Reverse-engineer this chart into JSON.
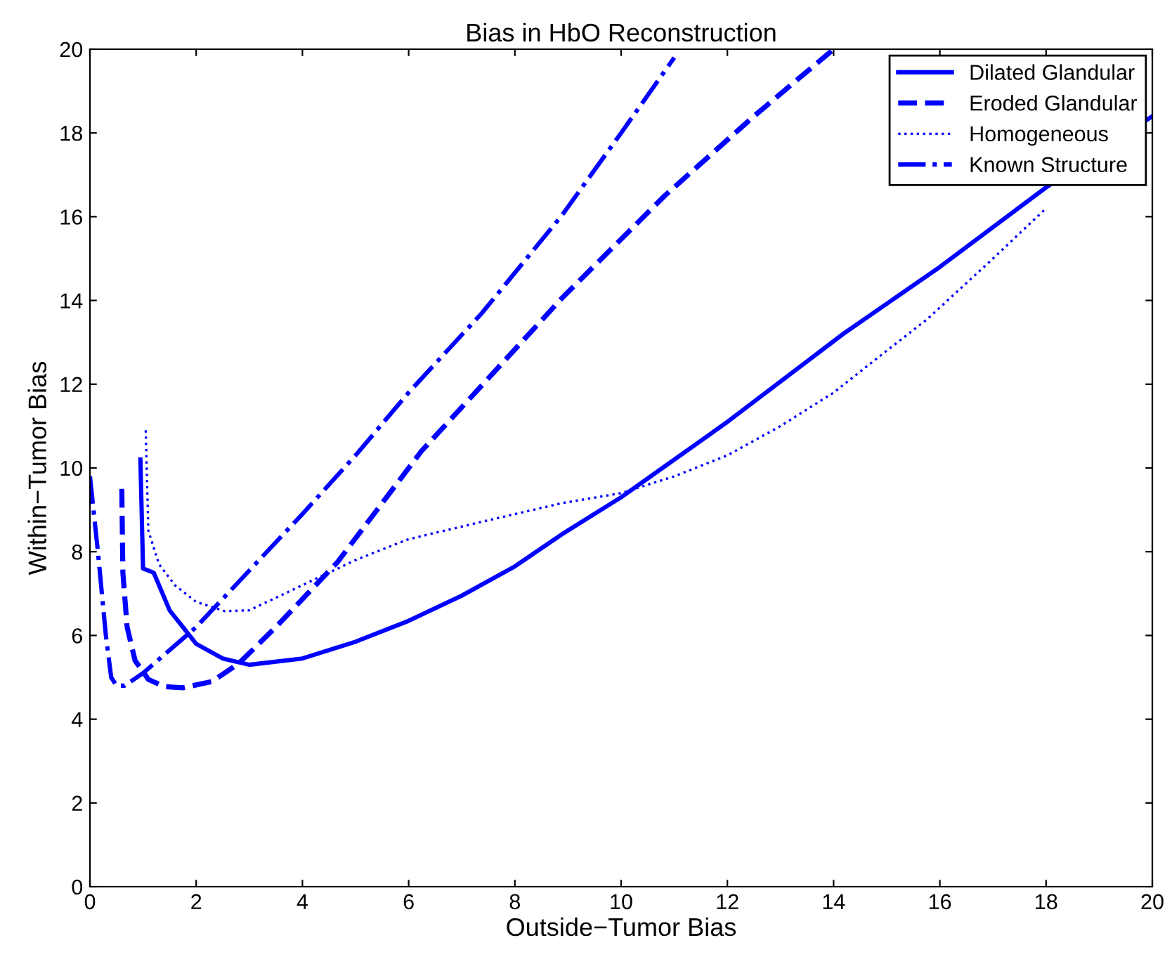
{
  "chart_data": {
    "type": "line",
    "title": "Bias in HbO Reconstruction",
    "xlabel": "Outside−Tumor Bias",
    "ylabel": "Within−Tumor Bias",
    "xlim": [
      0,
      20
    ],
    "ylim": [
      0,
      20
    ],
    "xticks": [
      0,
      2,
      4,
      6,
      8,
      10,
      12,
      14,
      16,
      18,
      20
    ],
    "yticks": [
      0,
      2,
      4,
      6,
      8,
      10,
      12,
      14,
      16,
      18,
      20
    ],
    "grid": false,
    "legend": "top right",
    "marker": "none",
    "series": [
      {
        "name": "Dilated Glandular",
        "color": "#0000ff",
        "line_style": "solid",
        "x": [
          0.95,
          1.0,
          1.2,
          1.5,
          2,
          2.5,
          3,
          4,
          5,
          6,
          7,
          8,
          8.89,
          10,
          12,
          14.18,
          16,
          18,
          20
        ],
        "values": [
          10.2,
          7.6,
          7.5,
          6.6,
          5.8,
          5.45,
          5.3,
          5.45,
          5.85,
          6.35,
          6.95,
          7.65,
          8.42,
          9.3,
          11.1,
          13.2,
          14.8,
          16.7,
          18.4
        ]
      },
      {
        "name": "Eroded Glandular",
        "color": "#0000ff",
        "line_style": "dashed",
        "x": [
          0.6,
          0.62,
          0.7,
          0.85,
          1.1,
          1.4,
          1.75,
          2.3,
          2.8,
          3.5,
          4.66,
          6.24,
          8.89,
          10.82,
          12.5,
          14.0
        ],
        "values": [
          9.5,
          7.5,
          6.2,
          5.4,
          4.95,
          4.78,
          4.75,
          4.9,
          5.33,
          6.2,
          7.75,
          10.4,
          14.06,
          16.5,
          18.4,
          20.0
        ]
      },
      {
        "name": "Homogeneous",
        "color": "#0000ff",
        "line_style": "dotted",
        "x": [
          1.05,
          1.1,
          1.3,
          1.6,
          2,
          2.54,
          3,
          4,
          5,
          6,
          7,
          8,
          8.89,
          10,
          11,
          12,
          13,
          14,
          15,
          15.77,
          17,
          18
        ],
        "values": [
          10.9,
          8.5,
          7.7,
          7.2,
          6.8,
          6.58,
          6.6,
          7.2,
          7.8,
          8.3,
          8.6,
          8.9,
          9.16,
          9.4,
          9.8,
          10.3,
          11.0,
          11.8,
          12.8,
          13.56,
          15.0,
          16.2
        ]
      },
      {
        "name": "Known Structure",
        "color": "#0000ff",
        "line_style": "dashdot",
        "x": [
          0,
          0.15,
          0.3,
          0.4,
          0.5,
          0.65,
          1,
          2,
          3,
          4,
          5,
          6,
          7.38,
          8.89,
          10,
          11.0
        ],
        "values": [
          9.8,
          8.0,
          6.0,
          5.0,
          4.8,
          4.8,
          5.1,
          6.2,
          7.55,
          8.9,
          10.3,
          11.8,
          13.7,
          16.04,
          18.0,
          19.8
        ]
      }
    ]
  }
}
